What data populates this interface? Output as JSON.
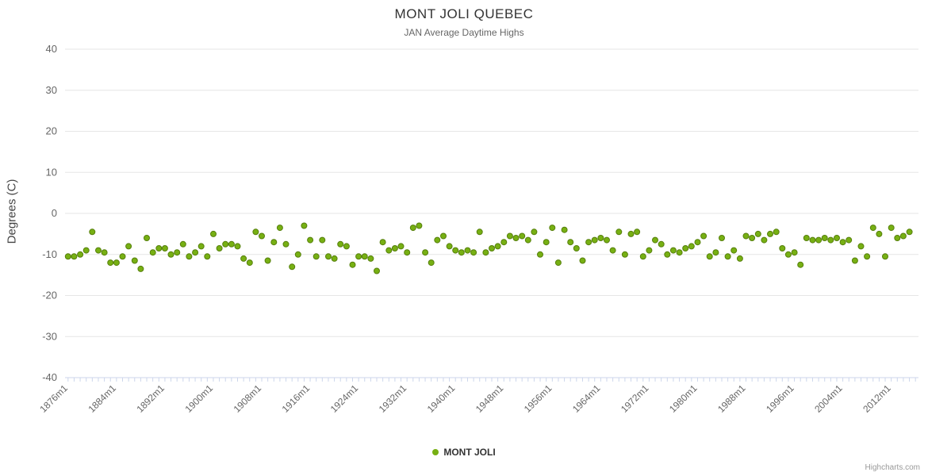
{
  "header": {
    "title": "MONT JOLI QUEBEC",
    "subtitle": "JAN Average Daytime Highs"
  },
  "legend": {
    "label": "MONT JOLI"
  },
  "credits": "Highcharts.com",
  "chart_data": {
    "type": "scatter",
    "title": "MONT JOLI QUEBEC",
    "subtitle": "JAN Average Daytime Highs",
    "ylabel": "Degrees (C)",
    "xlabel": "",
    "ylim": [
      -40,
      40
    ],
    "ytick_step": 10,
    "ytick_values": [
      40,
      30,
      20,
      10,
      0,
      -10,
      -20,
      -30,
      -40
    ],
    "grid": true,
    "legend_position": "bottom",
    "xtick_years": [
      1876,
      1884,
      1892,
      1900,
      1908,
      1916,
      1924,
      1932,
      1940,
      1948,
      1956,
      1964,
      1972,
      1980,
      1988,
      1996,
      2004,
      2012
    ],
    "xtick_labels": [
      "1876m1",
      "1884m1",
      "1892m1",
      "1900m1",
      "1908m1",
      "1916m1",
      "1924m1",
      "1932m1",
      "1940m1",
      "1948m1",
      "1956m1",
      "1964m1",
      "1972m1",
      "1980m1",
      "1988m1",
      "1996m1",
      "2004m1",
      "2012m1"
    ],
    "colors": {
      "point_fill": "#77b013",
      "point_stroke": "#567f0c",
      "grid_line": "#e6e6e6",
      "axis_line": "#ccd6eb",
      "tick_mark": "#ccd6eb",
      "tick_label": "#666666"
    },
    "series": [
      {
        "name": "MONT JOLI",
        "x_start_year": 1876,
        "x_step": 1,
        "values": [
          -10.5,
          -10.5,
          -10,
          -9,
          -4.5,
          -9,
          -9.5,
          -12,
          -12,
          -10.5,
          -8,
          -11.5,
          -13.5,
          -6,
          -9.5,
          -8.5,
          -8.5,
          -10,
          -9.5,
          -7.5,
          -10.5,
          -9.5,
          -8,
          -10.5,
          -5,
          -8.5,
          -7.5,
          -7.5,
          -8,
          -11,
          -12,
          -4.5,
          -5.5,
          -11.5,
          -7,
          -3.5,
          -7.5,
          -13,
          -10,
          -3,
          -6.5,
          -10.5,
          -6.5,
          -10.5,
          -11,
          -7.5,
          -8,
          -12.5,
          -10.5,
          -10.5,
          -11,
          -14,
          -7,
          -9,
          -8.5,
          -8,
          -9.5,
          -3.5,
          -3,
          -9.5,
          -12,
          -6.5,
          -5.5,
          -8,
          -9,
          -9.5,
          -9,
          -9.5,
          -4.5,
          -9.5,
          -8.5,
          -8,
          -7,
          -5.5,
          -6,
          -5.5,
          -6.5,
          -4.5,
          -10,
          -7,
          -3.5,
          -12,
          -4,
          -7,
          -8.5,
          -11.5,
          -7,
          -6.5,
          -6,
          -6.5,
          -9,
          -4.5,
          -10,
          -5,
          -4.5,
          -10.5,
          -9,
          -6.5,
          -7.5,
          -10,
          -9,
          -9.5,
          -8.5,
          -8,
          -7,
          -5.5,
          -10.5,
          -9.5,
          -6,
          -10.5,
          -9,
          -11,
          -5.5,
          -6,
          -5,
          -6.5,
          -5,
          -4.5,
          -8.5,
          -10,
          -9.5,
          -12.5,
          -6,
          -6.5,
          -6.5,
          -6,
          -6.5,
          -6,
          -7,
          -6.5,
          -11.5,
          -8,
          -10.5,
          -3.5,
          -5,
          -10.5,
          -3.5,
          -6,
          -5.5,
          -4.5
        ]
      }
    ]
  }
}
